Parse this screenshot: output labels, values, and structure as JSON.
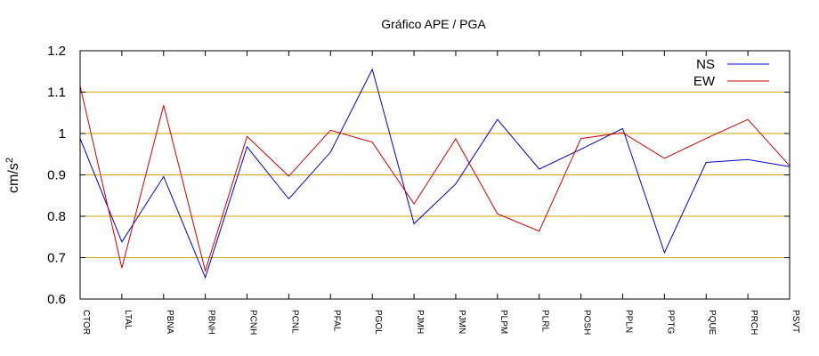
{
  "chart_data": {
    "type": "line",
    "title": "Gráfico  APE / PGA",
    "xlabel": "",
    "ylabel": "cm/s²",
    "ylim": [
      0.6,
      1.2
    ],
    "yticks": [
      0.6,
      0.7,
      0.8,
      0.9,
      1.0,
      1.1,
      1.2
    ],
    "ytick_labels": [
      "0.6",
      "0.7",
      "0.8",
      "0.9",
      "1",
      "1.1",
      "1.2"
    ],
    "grid": "horizontal",
    "grid_lines": [
      0.7,
      0.8,
      0.9,
      1.0,
      1.1
    ],
    "legend_position": "top-right",
    "categories": [
      "CTOR",
      "LTAL",
      "PBNA",
      "PBNH",
      "PCNH",
      "PCNL",
      "PFAL",
      "PGOL",
      "PJMH",
      "PJMN",
      "PLPM",
      "PLRL",
      "POSH",
      "PPLN",
      "PPTG",
      "PQUE",
      "PRCH",
      "PSVT"
    ],
    "series": [
      {
        "name": "NS",
        "color": "#0000cc",
        "values": [
          0.988,
          0.738,
          0.896,
          0.652,
          0.968,
          0.842,
          0.955,
          1.155,
          0.782,
          0.878,
          1.034,
          0.914,
          0.962,
          1.012,
          0.712,
          0.93,
          0.937,
          0.92
        ]
      },
      {
        "name": "EW",
        "color": "#cc0000",
        "values": [
          1.115,
          0.675,
          1.068,
          0.668,
          0.993,
          0.897,
          1.008,
          0.979,
          0.83,
          0.987,
          0.806,
          0.764,
          0.988,
          1.002,
          0.94,
          0.988,
          1.034,
          0.922
        ]
      }
    ]
  },
  "colors": {
    "grid": "#d4a300",
    "frame": "#000000",
    "background": "#ffffff"
  }
}
